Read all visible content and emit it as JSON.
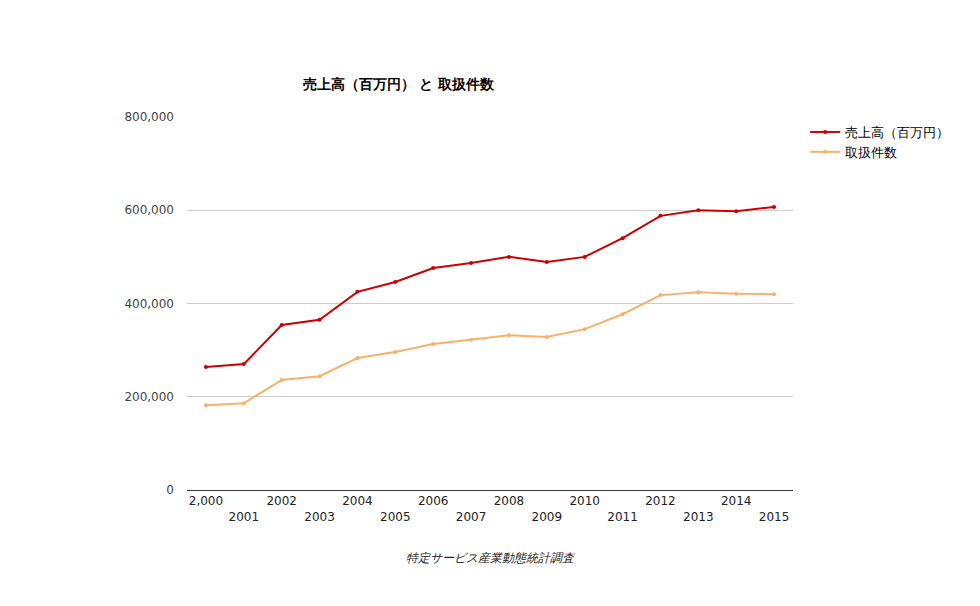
{
  "chart_data": {
    "type": "line",
    "title": "売上高（百万円） と 取扱件数",
    "x_label": "特定サービス産業動態統計調査",
    "x": [
      2000,
      2001,
      2002,
      2003,
      2004,
      2005,
      2006,
      2007,
      2008,
      2009,
      2010,
      2011,
      2012,
      2013,
      2014,
      2015
    ],
    "series": [
      {
        "name": "売上高（百万円）",
        "color": "#cc0000",
        "marker": "circle",
        "line_style": "solid",
        "values": [
          264000,
          270000,
          354000,
          365000,
          425000,
          446000,
          476000,
          487000,
          500000,
          489000,
          500000,
          540000,
          588000,
          600000,
          598000,
          607000
        ]
      },
      {
        "name": "取扱件数",
        "color": "#f6b26b",
        "marker": "circle",
        "line_style": "solid",
        "values": [
          182000,
          186000,
          236000,
          244000,
          283000,
          296000,
          313000,
          322000,
          332000,
          328000,
          345000,
          377000,
          418000,
          424000,
          421000,
          420000
        ]
      }
    ],
    "xlim": [
      1999.5,
      2015.5
    ],
    "xticks": [
      {
        "value": 2000,
        "label": "2,000"
      },
      2001,
      2002,
      2003,
      2004,
      2005,
      2006,
      2007,
      2008,
      2009,
      2010,
      2011,
      2012,
      2013,
      2014,
      2015
    ],
    "ylim": [
      0,
      800000
    ],
    "yticks": [
      0,
      {
        "value": 200000,
        "label": "200,000"
      },
      {
        "value": 400000,
        "label": "400,000"
      },
      {
        "value": 600000,
        "label": "600,000"
      },
      {
        "value": 800000,
        "label": "800,000"
      }
    ],
    "grid": true,
    "legend": "top right"
  }
}
